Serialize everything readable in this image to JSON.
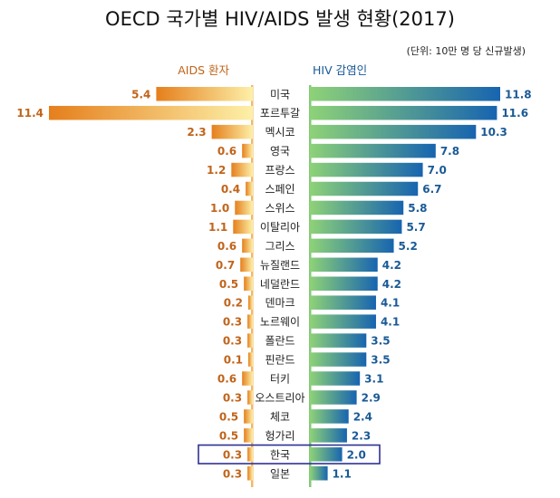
{
  "chart_data": {
    "type": "bar",
    "title": "OECD 국가별 HIV/AIDS 발생 현황(2017)",
    "subtitle": "(단위: 10만 명 당 신규발생)",
    "categories": [
      "미국",
      "포르투갈",
      "멕시코",
      "영국",
      "프랑스",
      "스페인",
      "스위스",
      "이탈리아",
      "그리스",
      "뉴질랜드",
      "네덜란드",
      "덴마크",
      "노르웨이",
      "폴란드",
      "핀란드",
      "터키",
      "오스트리아",
      "체코",
      "헝가리",
      "한국",
      "일본"
    ],
    "series": [
      {
        "name": "AIDS 환자",
        "color": "#f0a23a",
        "values": [
          5.4,
          11.4,
          2.3,
          0.6,
          1.2,
          0.4,
          1.0,
          1.1,
          0.6,
          0.7,
          0.5,
          0.2,
          0.3,
          0.3,
          0.1,
          0.6,
          0.3,
          0.5,
          0.5,
          0.3,
          0.3
        ]
      },
      {
        "name": "HIV 감염인",
        "color": "#1a73b0",
        "values": [
          11.8,
          11.6,
          10.3,
          7.8,
          7.0,
          6.7,
          5.8,
          5.7,
          5.2,
          4.2,
          4.2,
          4.1,
          4.1,
          3.5,
          3.5,
          3.1,
          2.9,
          2.4,
          2.3,
          2.0,
          1.1
        ]
      }
    ],
    "value_labels": {
      "left": [
        "5.4",
        "11.4",
        "2.3",
        "0.6",
        "1.2",
        "0.4",
        "1.0",
        "1.1",
        "0.6",
        "0.7",
        "0.5",
        "0.2",
        "0.3",
        "0.3",
        "0.1",
        "0.6",
        "0.3",
        "0.5",
        "0.5",
        "0.3",
        "0.3"
      ],
      "right": [
        "11.8",
        "11.6",
        "10.3",
        "7.8",
        "7.0",
        "6.7",
        "5.8",
        "5.7",
        "5.2",
        "4.2",
        "4.2",
        "4.1",
        "4.1",
        "3.5",
        "3.5",
        "3.1",
        "2.9",
        "2.4",
        "2.3",
        "2.0",
        "1.1"
      ]
    },
    "highlight": "한국",
    "highlight_color": "#2e3192",
    "label_colors": {
      "left": "#c0641a",
      "right": "#1a5a96"
    }
  }
}
